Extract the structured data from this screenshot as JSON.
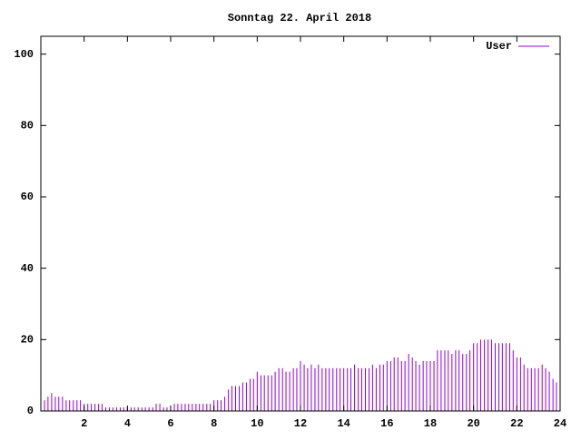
{
  "chart_data": {
    "type": "impulse",
    "title": "Sonntag 22. April 2018",
    "x": [
      0,
      0.17,
      0.33,
      0.5,
      0.67,
      0.83,
      1,
      1.17,
      1.33,
      1.5,
      1.67,
      1.83,
      2,
      2.17,
      2.33,
      2.5,
      2.67,
      2.83,
      3,
      3.17,
      3.33,
      3.5,
      3.67,
      3.83,
      4,
      4.17,
      4.33,
      4.5,
      4.67,
      4.83,
      5,
      5.17,
      5.33,
      5.5,
      5.67,
      5.83,
      6,
      6.17,
      6.33,
      6.5,
      6.67,
      6.83,
      7,
      7.17,
      7.33,
      7.5,
      7.67,
      7.83,
      8,
      8.17,
      8.33,
      8.5,
      8.67,
      8.83,
      9,
      9.17,
      9.33,
      9.5,
      9.67,
      9.83,
      10,
      10.17,
      10.33,
      10.5,
      10.67,
      10.83,
      11,
      11.17,
      11.33,
      11.5,
      11.67,
      11.83,
      12,
      12.17,
      12.33,
      12.5,
      12.67,
      12.83,
      13,
      13.17,
      13.33,
      13.5,
      13.67,
      13.83,
      14,
      14.17,
      14.33,
      14.5,
      14.67,
      14.83,
      15,
      15.17,
      15.33,
      15.5,
      15.67,
      15.83,
      16,
      16.17,
      16.33,
      16.5,
      16.67,
      16.83,
      17,
      17.17,
      17.33,
      17.5,
      17.67,
      17.83,
      18,
      18.17,
      18.33,
      18.5,
      18.67,
      18.83,
      19,
      19.17,
      19.33,
      19.5,
      19.67,
      19.83,
      20,
      20.17,
      20.33,
      20.5,
      20.67,
      20.83,
      21,
      21.17,
      21.33,
      21.5,
      21.67,
      21.83,
      22,
      22.17,
      22.33,
      22.5,
      22.67,
      22.83,
      23,
      23.17,
      23.33,
      23.5,
      23.67,
      23.83
    ],
    "series": [
      {
        "name": "User",
        "color": "#9400d3",
        "values": [
          3,
          3,
          4,
          5,
          4,
          4,
          4,
          3,
          3,
          3,
          3,
          3,
          2,
          2,
          2,
          2,
          2,
          2,
          1,
          1,
          1,
          1,
          1,
          1,
          1,
          1,
          1,
          1,
          1,
          1,
          1,
          1,
          2,
          2,
          1,
          1,
          1,
          2,
          2,
          2,
          2,
          2,
          2,
          2,
          2,
          2,
          2,
          2,
          3,
          3,
          3,
          4,
          6,
          7,
          7,
          7,
          8,
          8,
          9,
          9,
          11,
          10,
          10,
          10,
          10,
          11,
          12,
          12,
          11,
          11,
          12,
          12,
          14,
          13,
          12,
          13,
          12,
          13,
          12,
          12,
          12,
          12,
          12,
          12,
          12,
          12,
          12,
          13,
          12,
          12,
          12,
          12,
          13,
          12,
          13,
          13,
          14,
          14,
          15,
          15,
          14,
          14,
          16,
          15,
          14,
          13,
          14,
          14,
          14,
          14,
          17,
          17,
          17,
          17,
          16,
          17,
          17,
          16,
          16,
          17,
          19,
          19,
          20,
          20,
          20,
          20,
          19,
          19,
          19,
          19,
          19,
          17,
          15,
          15,
          13,
          12,
          12,
          12,
          12,
          13,
          12,
          11,
          9,
          8
        ]
      }
    ],
    "xlim": [
      0,
      24
    ],
    "xticks": [
      2,
      4,
      6,
      8,
      10,
      12,
      14,
      16,
      18,
      20,
      22,
      24
    ],
    "ylim": [
      0,
      105
    ],
    "yticks": [
      0,
      20,
      40,
      60,
      80,
      100
    ],
    "legend": "upper right"
  }
}
